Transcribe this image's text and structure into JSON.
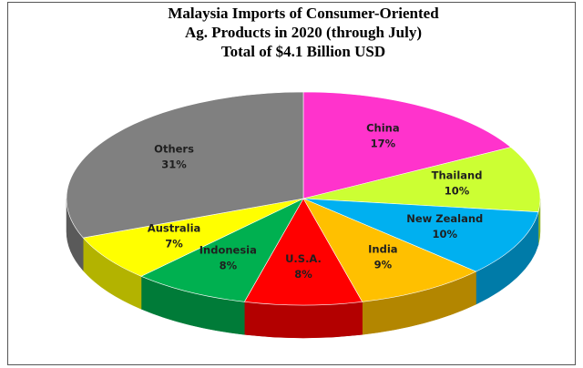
{
  "chart_data": {
    "type": "pie3d",
    "title": [
      "Malaysia Imports of Consumer-Oriented",
      "Ag. Products in 2020 (through July)",
      "Total of $4.1 Billion USD"
    ],
    "categories": [
      "China",
      "Thailand",
      "New Zealand",
      "India",
      "U.S.A.",
      "Indonesia",
      "Australia",
      "Others"
    ],
    "values": [
      17,
      10,
      10,
      9,
      8,
      8,
      7,
      31
    ],
    "value_labels": [
      "17%",
      "10%",
      "10%",
      "9%",
      "8%",
      "8%",
      "7%",
      "31%"
    ],
    "colors": [
      "#ff33cc",
      "#ccff33",
      "#00b0f0",
      "#ffc000",
      "#ff0000",
      "#00b050",
      "#ffff00",
      "#808080"
    ]
  }
}
